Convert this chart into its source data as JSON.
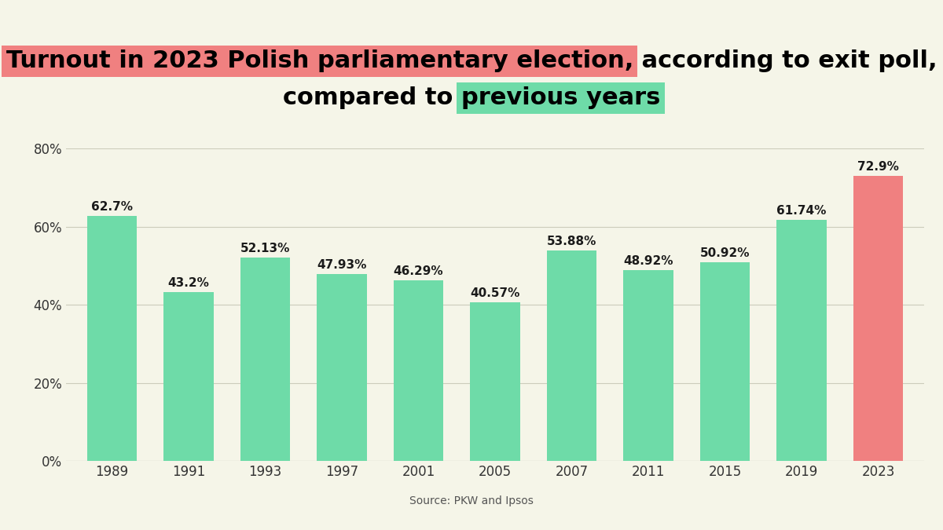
{
  "years": [
    "1989",
    "1991",
    "1993",
    "1997",
    "2001",
    "2005",
    "2007",
    "2011",
    "2015",
    "2019",
    "2023"
  ],
  "values": [
    62.7,
    43.2,
    52.13,
    47.93,
    46.29,
    40.57,
    53.88,
    48.92,
    50.92,
    61.74,
    72.9
  ],
  "labels": [
    "62.7%",
    "43.2%",
    "52.13%",
    "47.93%",
    "46.29%",
    "40.57%",
    "53.88%",
    "48.92%",
    "50.92%",
    "61.74%",
    "72.9%"
  ],
  "bar_colors": [
    "#6EDBA8",
    "#6EDBA8",
    "#6EDBA8",
    "#6EDBA8",
    "#6EDBA8",
    "#6EDBA8",
    "#6EDBA8",
    "#6EDBA8",
    "#6EDBA8",
    "#6EDBA8",
    "#F08080"
  ],
  "background_color": "#F5F5E8",
  "title_red_text": "Turnout in 2023 Polish parliamentary election,",
  "title_normal_text": " according to exit poll,",
  "title_normal2_text": "compared to ",
  "title_green_text": "previous years",
  "title_red_color": "#F08080",
  "title_green_color": "#6EDBA8",
  "source_text": "Source: PKW and Ipsos",
  "ylim": [
    0,
    80
  ],
  "yticks": [
    0,
    20,
    40,
    60,
    80
  ],
  "ytick_labels": [
    "0%",
    "20%",
    "40%",
    "60%",
    "80%"
  ],
  "grid_color": "#CCCCBB",
  "bar_label_fontsize": 11,
  "title_fontsize": 22,
  "tick_fontsize": 12,
  "source_fontsize": 10
}
